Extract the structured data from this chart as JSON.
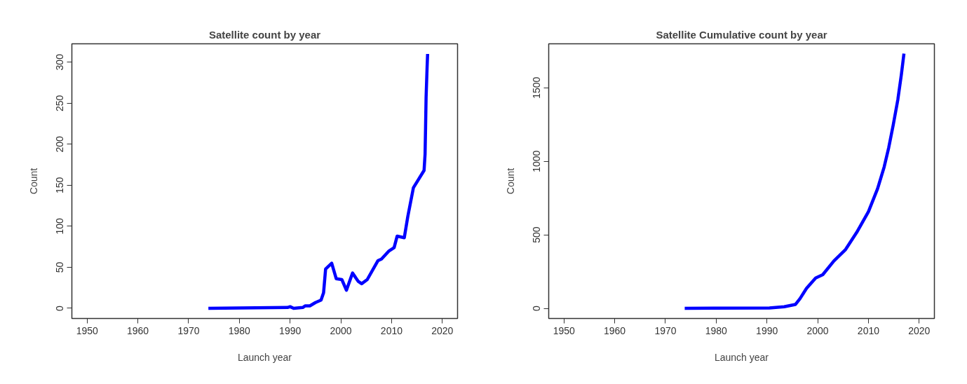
{
  "chart_data": [
    {
      "type": "line",
      "title": "Satellite count by year",
      "xlabel": "Launch year",
      "ylabel": "Count",
      "xlim": [
        1947,
        2023
      ],
      "ylim": [
        -12.4,
        322.4
      ],
      "xticks": [
        1950,
        1960,
        1970,
        1980,
        1990,
        2000,
        2010,
        2020
      ],
      "yticks": [
        0,
        50,
        100,
        150,
        200,
        250,
        300
      ],
      "grid": false,
      "marker": "none",
      "line_style": "solid",
      "x": [
        1973.9,
        1989.5,
        1990,
        1990.7,
        1992.5,
        1993,
        1993.9,
        1995,
        1996.1,
        1996.6,
        1997,
        1998.2,
        1999.1,
        2000.2,
        2001.1,
        2002.3,
        2003.4,
        2004.1,
        2005.2,
        2007.3,
        2008,
        2009.5,
        2010.5,
        2011.1,
        2012.5,
        2013.2,
        2014.3,
        2016.1,
        2016.4,
        2016.6,
        2016.7,
        2016.8,
        2017,
        2017.1
      ],
      "series": [
        {
          "color": "#0000ff",
          "values": [
            0,
            1,
            2,
            0,
            1,
            3,
            3,
            7,
            10,
            19,
            48,
            55,
            36,
            35,
            22,
            43,
            33,
            30,
            35,
            58,
            60,
            70,
            74,
            88,
            86,
            112,
            147,
            165,
            168,
            188,
            221,
            257,
            294,
            310
          ]
        }
      ]
    },
    {
      "type": "line",
      "title": "Satellite Cumulative count by year",
      "xlabel": "Launch year",
      "ylabel": "Count",
      "xlim": [
        1947,
        2023
      ],
      "ylim": [
        -69,
        1799
      ],
      "xticks": [
        1950,
        1960,
        1970,
        1980,
        1990,
        2000,
        2010,
        2020
      ],
      "yticks": [
        0,
        500,
        1000,
        1500
      ],
      "grid": false,
      "marker": "none",
      "line_style": "solid",
      "x": [
        1973.8,
        1990.5,
        1993.4,
        1995.6,
        1996.5,
        1997.8,
        1999.6,
        2001,
        2003.2,
        2005.5,
        2007.7,
        2010,
        2011.8,
        2013.1,
        2014,
        2014.9,
        2015.8,
        2016.5,
        2017
      ],
      "series": [
        {
          "color": "#0000ff",
          "values": [
            0,
            3,
            11,
            26,
            65,
            136,
            206,
            229,
            322,
            400,
            517,
            657,
            813,
            961,
            1093,
            1249,
            1420,
            1592,
            1732
          ]
        }
      ]
    }
  ]
}
